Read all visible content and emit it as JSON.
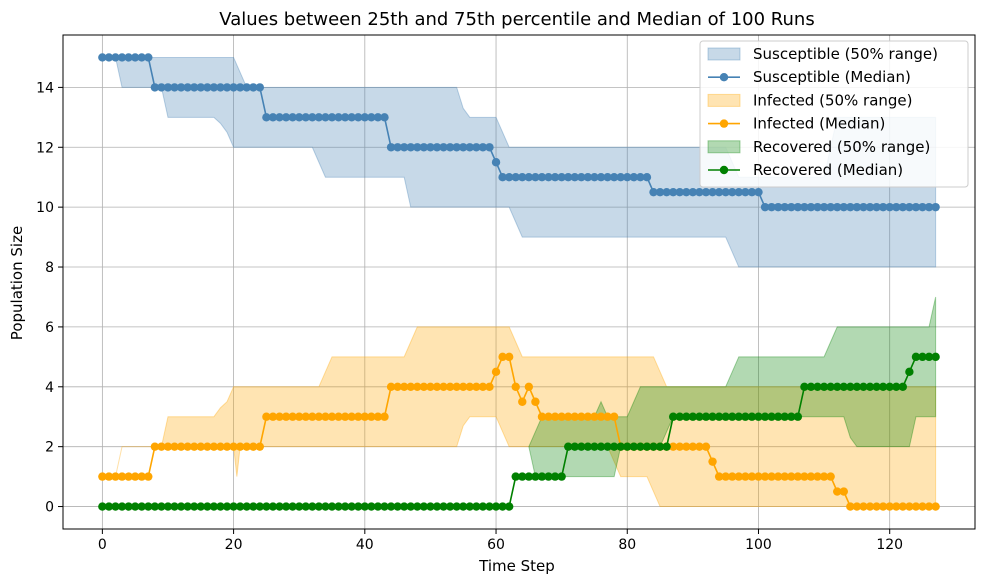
{
  "chart_data": {
    "type": "line",
    "title": "Values between 25th and 75th percentile and Median of 100 Runs",
    "xlabel": "Time Step",
    "ylabel": "Population Size",
    "xlim": [
      -6,
      133
    ],
    "ylim": [
      -0.75,
      15.75
    ],
    "xticks": [
      0,
      20,
      40,
      60,
      80,
      100,
      120
    ],
    "yticks": [
      0,
      2,
      4,
      6,
      8,
      10,
      12,
      14
    ],
    "grid": true,
    "legend_position": "top-right",
    "n_points": 128,
    "series": [
      {
        "name": "Susceptible",
        "legend_band": "Susceptible (50% range)",
        "legend_line": "Susceptible (Median)",
        "color": "#4682b4",
        "band_color": "#aac4de",
        "median": [
          [
            0,
            15
          ],
          [
            7,
            15
          ],
          [
            8,
            14
          ],
          [
            24,
            14
          ],
          [
            25,
            13
          ],
          [
            43,
            13
          ],
          [
            44,
            12
          ],
          [
            59,
            12
          ],
          [
            60,
            11.5
          ],
          [
            61,
            11
          ],
          [
            78,
            11
          ],
          [
            79,
            11
          ],
          [
            83,
            11
          ],
          [
            84,
            10.5
          ],
          [
            100,
            10.5
          ],
          [
            101,
            10
          ],
          [
            127,
            10
          ]
        ],
        "q_low": [
          [
            0,
            15
          ],
          [
            2,
            15
          ],
          [
            3,
            14
          ],
          [
            9,
            14
          ],
          [
            10,
            13
          ],
          [
            17,
            13
          ],
          [
            18,
            12.8
          ],
          [
            19,
            12.5
          ],
          [
            20,
            12
          ],
          [
            32,
            12
          ],
          [
            33,
            11.5
          ],
          [
            34,
            11
          ],
          [
            46,
            11
          ],
          [
            47,
            10
          ],
          [
            62,
            10
          ],
          [
            63,
            9.5
          ],
          [
            64,
            9
          ],
          [
            95,
            9
          ],
          [
            96,
            8.5
          ],
          [
            97,
            8
          ],
          [
            127,
            8
          ]
        ],
        "q_high": [
          [
            0,
            15
          ],
          [
            20,
            15
          ],
          [
            21,
            14.5
          ],
          [
            22,
            14
          ],
          [
            54,
            14
          ],
          [
            55,
            13.3
          ],
          [
            56,
            13
          ],
          [
            60,
            13
          ],
          [
            61,
            12.5
          ],
          [
            62,
            12
          ],
          [
            95,
            12
          ],
          [
            96,
            11.5
          ],
          [
            97,
            11
          ],
          [
            110,
            11
          ],
          [
            111,
            12
          ],
          [
            112,
            13
          ],
          [
            127,
            13
          ]
        ]
      },
      {
        "name": "Infected",
        "legend_band": "Infected (50% range)",
        "legend_line": "Infected (Median)",
        "color": "#ffa500",
        "band_color": "#ffd990",
        "median": [
          [
            0,
            1
          ],
          [
            7,
            1
          ],
          [
            8,
            2
          ],
          [
            24,
            2
          ],
          [
            25,
            3
          ],
          [
            43,
            3
          ],
          [
            44,
            4
          ],
          [
            59,
            4
          ],
          [
            60,
            4.5
          ],
          [
            61,
            5
          ],
          [
            62,
            5
          ],
          [
            63,
            4
          ],
          [
            64,
            3.5
          ],
          [
            65,
            4
          ],
          [
            66,
            3.5
          ],
          [
            67,
            3
          ],
          [
            78,
            3
          ],
          [
            79,
            2
          ],
          [
            92,
            2
          ],
          [
            93,
            1.5
          ],
          [
            94,
            1
          ],
          [
            111,
            1
          ],
          [
            112,
            0.5
          ],
          [
            113,
            0.5
          ],
          [
            114,
            0
          ],
          [
            127,
            0
          ]
        ],
        "q_low": [
          [
            0,
            1
          ],
          [
            2,
            1
          ],
          [
            3,
            2
          ],
          [
            20,
            2
          ],
          [
            20.5,
            1
          ],
          [
            21,
            2
          ],
          [
            54,
            2
          ],
          [
            55,
            2.7
          ],
          [
            56,
            3
          ],
          [
            60,
            3
          ],
          [
            61,
            2.5
          ],
          [
            62,
            2
          ],
          [
            77,
            2
          ],
          [
            78,
            1.5
          ],
          [
            79,
            1
          ],
          [
            83,
            1
          ],
          [
            84,
            0.5
          ],
          [
            85,
            0
          ],
          [
            127,
            0
          ]
        ],
        "q_high": [
          [
            0,
            1
          ],
          [
            2,
            1
          ],
          [
            3,
            2
          ],
          [
            9,
            2
          ],
          [
            10,
            3
          ],
          [
            17,
            3
          ],
          [
            18,
            3.3
          ],
          [
            19,
            3.5
          ],
          [
            20,
            4
          ],
          [
            33,
            4
          ],
          [
            34,
            4.5
          ],
          [
            35,
            5
          ],
          [
            46,
            5
          ],
          [
            47,
            5.5
          ],
          [
            48,
            6
          ],
          [
            62,
            6
          ],
          [
            63,
            5.5
          ],
          [
            64,
            5
          ],
          [
            84,
            5
          ],
          [
            85,
            4.5
          ],
          [
            86,
            4
          ],
          [
            127,
            4
          ]
        ]
      },
      {
        "name": "Recovered",
        "legend_band": "Recovered (50% range)",
        "legend_line": "Recovered (Median)",
        "color": "#008000",
        "band_color": "#90cc90",
        "median": [
          [
            0,
            0
          ],
          [
            62,
            0
          ],
          [
            63,
            1
          ],
          [
            70,
            1
          ],
          [
            71,
            2
          ],
          [
            86,
            2
          ],
          [
            87,
            3
          ],
          [
            106,
            3
          ],
          [
            107,
            4
          ],
          [
            122,
            4
          ],
          [
            123,
            4.5
          ],
          [
            124,
            5
          ],
          [
            127,
            5
          ]
        ],
        "q_low": [
          [
            65,
            2
          ],
          [
            66,
            1
          ],
          [
            78,
            1
          ],
          [
            79,
            2
          ],
          [
            85,
            2
          ],
          [
            86,
            2.5
          ],
          [
            87,
            3
          ],
          [
            113,
            3
          ],
          [
            114,
            2.3
          ],
          [
            115,
            2
          ],
          [
            123,
            2
          ],
          [
            124,
            3
          ],
          [
            127,
            3
          ]
        ],
        "q_high": [
          [
            65,
            2
          ],
          [
            66,
            2.5
          ],
          [
            67,
            3
          ],
          [
            75,
            3
          ],
          [
            76,
            3.5
          ],
          [
            77,
            3
          ],
          [
            80,
            3
          ],
          [
            81,
            3.5
          ],
          [
            82,
            4
          ],
          [
            95,
            4
          ],
          [
            96,
            4.5
          ],
          [
            97,
            5
          ],
          [
            110,
            5
          ],
          [
            111,
            5.5
          ],
          [
            112,
            6
          ],
          [
            126,
            6
          ],
          [
            127,
            7
          ]
        ]
      }
    ]
  }
}
